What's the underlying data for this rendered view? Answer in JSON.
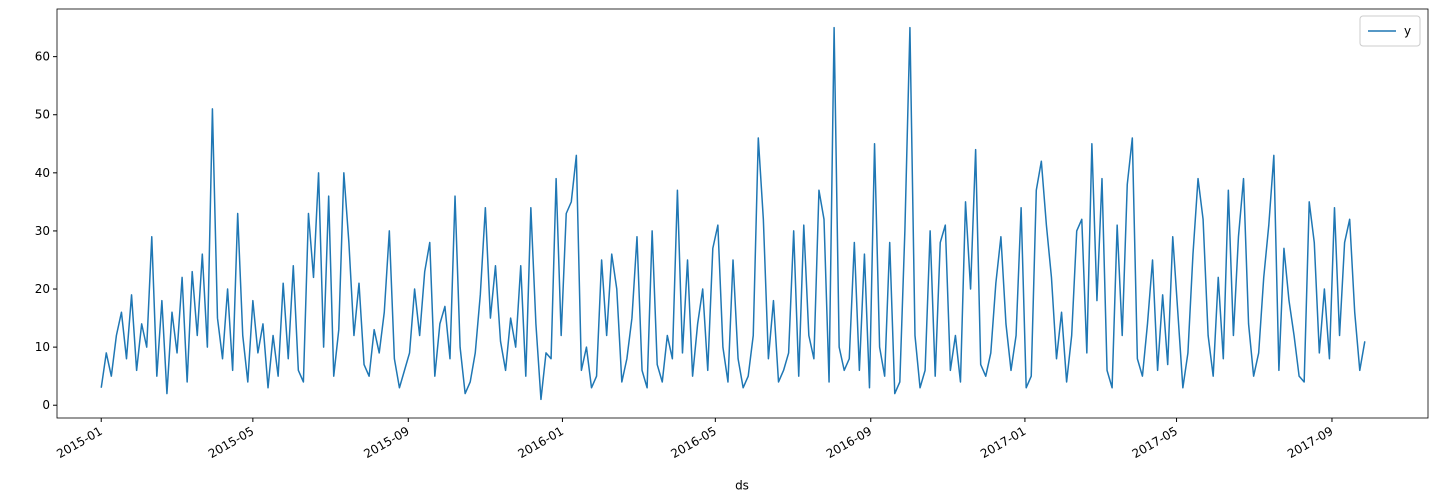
{
  "chart_data": {
    "type": "line",
    "xlabel": "ds",
    "x": [
      0,
      4,
      8,
      12,
      16,
      20,
      24,
      28,
      32,
      36,
      40,
      44,
      48,
      52,
      56,
      60,
      64,
      68,
      72,
      76,
      80,
      84,
      88,
      92,
      96,
      100,
      104,
      108,
      112,
      116,
      120,
      124,
      128,
      132,
      136,
      140,
      144,
      148,
      152,
      156,
      160,
      164,
      168,
      172,
      176,
      180,
      184,
      188,
      192,
      196,
      200,
      204,
      208,
      212,
      216,
      220,
      224,
      228,
      232,
      236,
      240,
      244,
      248,
      252,
      256,
      260,
      264,
      268,
      272,
      276,
      280,
      284,
      288,
      292,
      296,
      300,
      304,
      308,
      312,
      316,
      320,
      324,
      328,
      332,
      336,
      340,
      344,
      348,
      352,
      356,
      360,
      364,
      368,
      372,
      376,
      380,
      384,
      388,
      392,
      396,
      400,
      404,
      408,
      412,
      416,
      420,
      424,
      428,
      432,
      436,
      440,
      444,
      448,
      452,
      456,
      460,
      464,
      468,
      472,
      476,
      480,
      484,
      488,
      492,
      496,
      500,
      504,
      508,
      512,
      516,
      520,
      524,
      528,
      532,
      536,
      540,
      544,
      548,
      552,
      556,
      560,
      564,
      568,
      572,
      576,
      580,
      584,
      588,
      592,
      596,
      600,
      604,
      608,
      612,
      616,
      620,
      624,
      628,
      632,
      636,
      640,
      644,
      648,
      652,
      656,
      660,
      664,
      668,
      672,
      676,
      680,
      684,
      688,
      692,
      696,
      700,
      704,
      708,
      712,
      716,
      720,
      724,
      728,
      732,
      736,
      740,
      744,
      748,
      752,
      756,
      760,
      764,
      768,
      772,
      776,
      780,
      784,
      788,
      792,
      796,
      800,
      804,
      808,
      812,
      816,
      820,
      824,
      828,
      832,
      836,
      840,
      844,
      848,
      852,
      856,
      860,
      864,
      868,
      872,
      876,
      880,
      884,
      888,
      892,
      896,
      900,
      904,
      908,
      912,
      916,
      920,
      924,
      928,
      932,
      936,
      940,
      944,
      948,
      952,
      956,
      960,
      964,
      968,
      972,
      976,
      980,
      984,
      988,
      992,
      996,
      1000
    ],
    "series": [
      {
        "name": "y",
        "color": "#1f77b4",
        "values": [
          3,
          9,
          5,
          12,
          16,
          8,
          19,
          6,
          14,
          10,
          29,
          5,
          18,
          2,
          16,
          9,
          22,
          4,
          23,
          12,
          26,
          10,
          51,
          15,
          8,
          20,
          6,
          33,
          12,
          4,
          18,
          9,
          14,
          3,
          12,
          5,
          21,
          8,
          24,
          6,
          4,
          33,
          22,
          40,
          10,
          36,
          5,
          13,
          40,
          28,
          12,
          21,
          7,
          5,
          13,
          9,
          16,
          30,
          8,
          3,
          6,
          9,
          20,
          12,
          23,
          28,
          5,
          14,
          17,
          8,
          36,
          10,
          2,
          4,
          9,
          19,
          34,
          15,
          24,
          11,
          6,
          15,
          10,
          24,
          5,
          34,
          14,
          1,
          9,
          8,
          39,
          12,
          33,
          35,
          43,
          6,
          10,
          3,
          5,
          25,
          12,
          26,
          20,
          4,
          8,
          15,
          29,
          6,
          3,
          30,
          7,
          4,
          12,
          8,
          37,
          9,
          25,
          5,
          14,
          20,
          6,
          27,
          31,
          10,
          4,
          25,
          8,
          3,
          5,
          12,
          46,
          32,
          8,
          18,
          4,
          6,
          9,
          30,
          5,
          31,
          12,
          8,
          37,
          32,
          4,
          65,
          10,
          6,
          8,
          28,
          6,
          26,
          3,
          45,
          10,
          5,
          28,
          2,
          4,
          30,
          65,
          12,
          3,
          6,
          30,
          5,
          28,
          31,
          6,
          12,
          4,
          35,
          20,
          44,
          7,
          5,
          9,
          21,
          29,
          14,
          6,
          12,
          34,
          3,
          5,
          37,
          42,
          31,
          22,
          8,
          16,
          4,
          12,
          30,
          32,
          9,
          45,
          18,
          39,
          6,
          3,
          31,
          12,
          38,
          46,
          8,
          5,
          14,
          25,
          6,
          19,
          7,
          29,
          16,
          3,
          9,
          26,
          39,
          32,
          12,
          5,
          22,
          8,
          37,
          12,
          29,
          39,
          14,
          5,
          9,
          22,
          31,
          43,
          6,
          27,
          18,
          12,
          5,
          4,
          35,
          28,
          9,
          20,
          8,
          34,
          12,
          28,
          32,
          16,
          6,
          11
        ]
      }
    ],
    "xlim": [
      -35,
      1050
    ],
    "xticks": [
      {
        "value": 0,
        "label": "2015-01"
      },
      {
        "value": 120,
        "label": "2015-05"
      },
      {
        "value": 243,
        "label": "2015-09"
      },
      {
        "value": 365,
        "label": "2016-01"
      },
      {
        "value": 486,
        "label": "2016-05"
      },
      {
        "value": 609,
        "label": "2016-09"
      },
      {
        "value": 731,
        "label": "2017-01"
      },
      {
        "value": 851,
        "label": "2017-05"
      },
      {
        "value": 974,
        "label": "2017-09"
      }
    ],
    "ylim": [
      -2.2,
      68.2
    ],
    "yticks": [
      0,
      10,
      20,
      30,
      40,
      50,
      60
    ],
    "legend": "upper right"
  }
}
